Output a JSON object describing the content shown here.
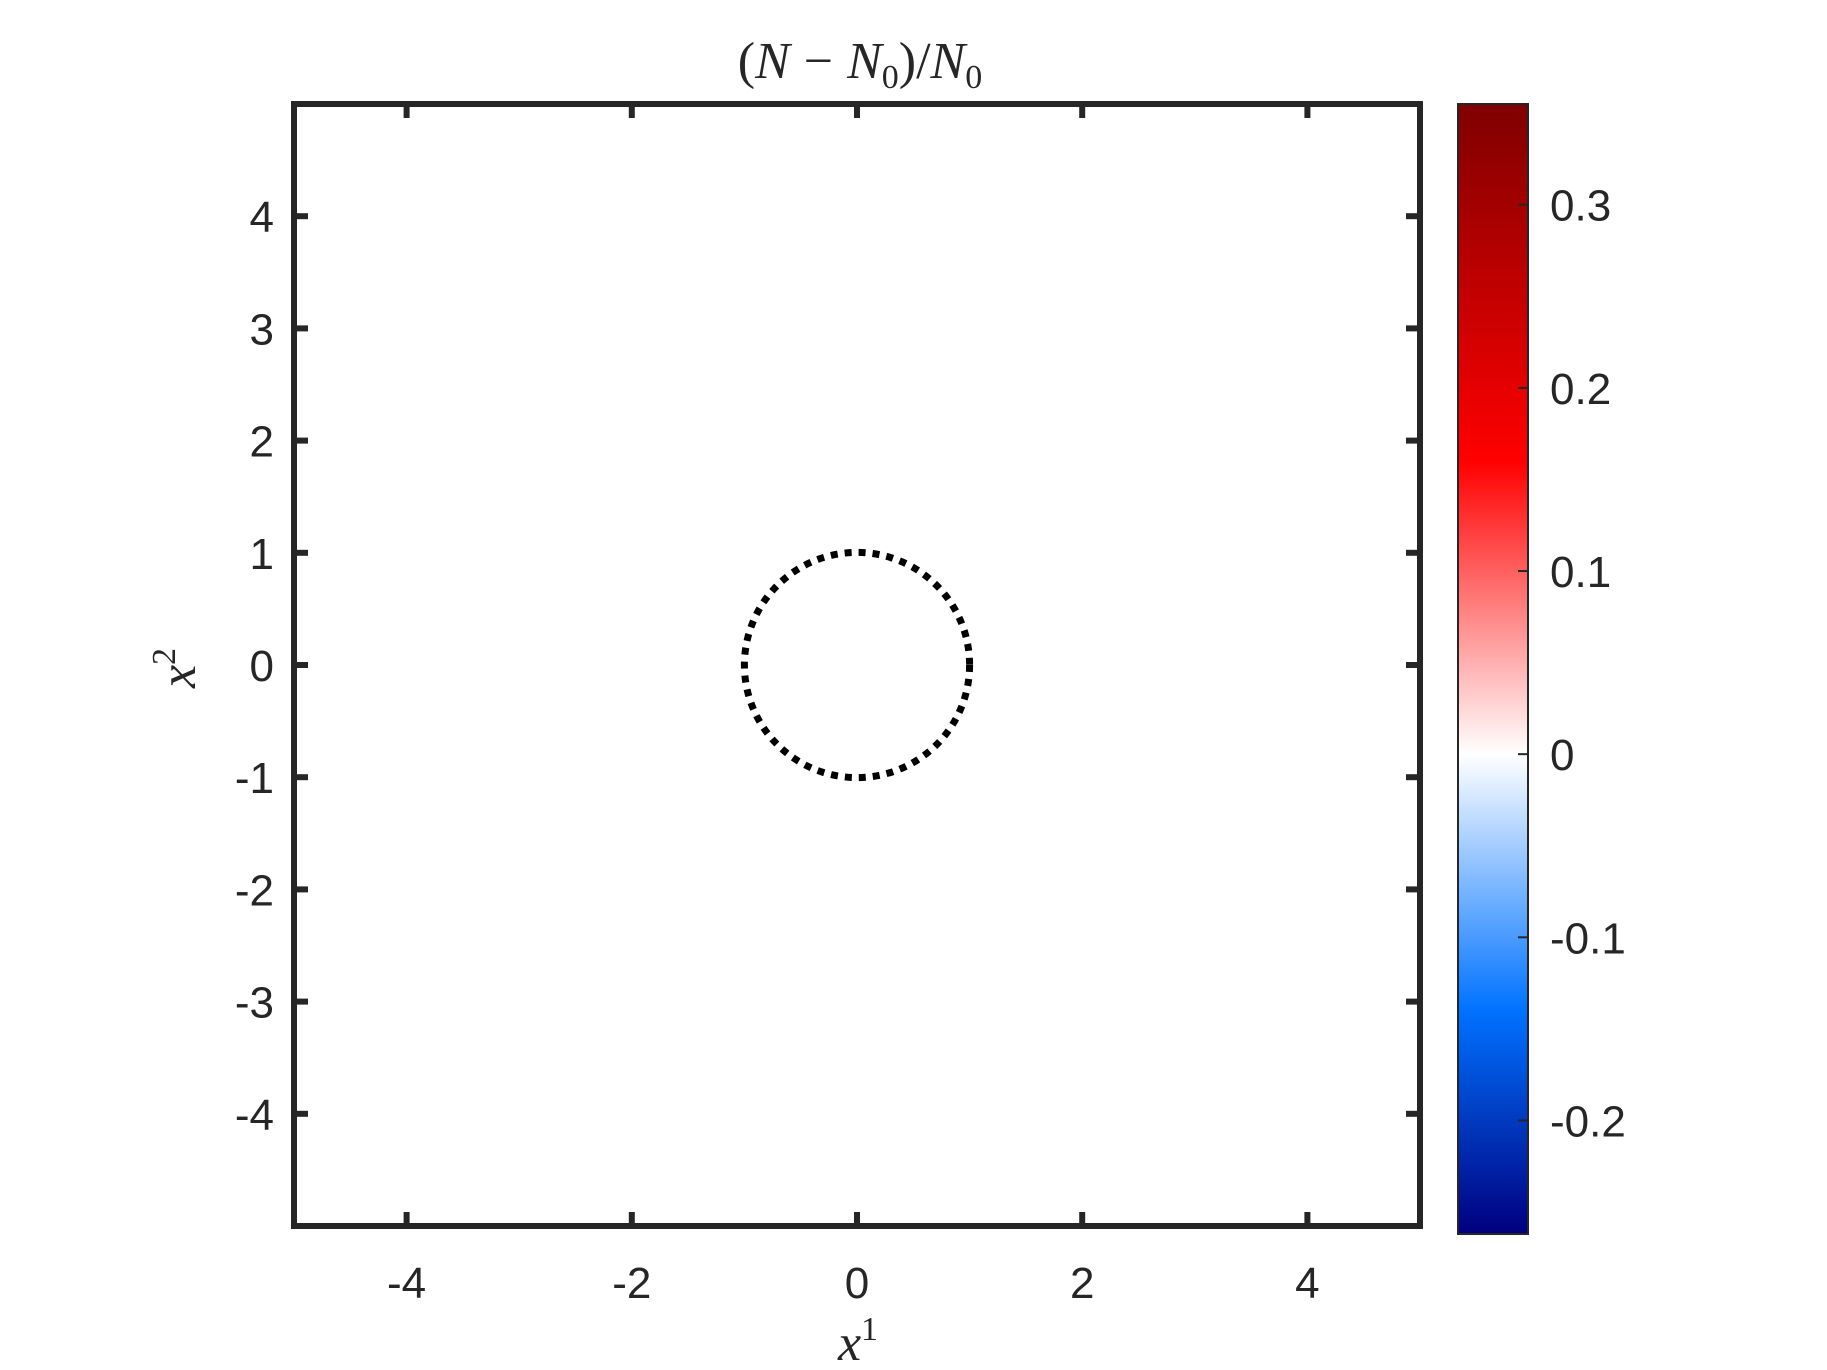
{
  "chart_data": {
    "type": "heatmap",
    "title": "(N − N0)/N0",
    "title_parts": {
      "open": "(",
      "N": "N",
      "minus": "−",
      "N0": "N",
      "sub0": "0",
      "close": ")/",
      "Nd": "N",
      "subd": "0"
    },
    "xlabel": {
      "base": "x",
      "sup": "1"
    },
    "ylabel": {
      "base": "x",
      "sup": "2"
    },
    "xlim": [
      -5,
      5
    ],
    "ylim": [
      -5,
      5
    ],
    "xticks": [
      -4,
      -2,
      0,
      2,
      4
    ],
    "xtick_labels": [
      "-4",
      "-2",
      "0",
      "2",
      "4"
    ],
    "yticks": [
      4,
      3,
      2,
      1,
      0,
      -1,
      -2,
      -3,
      -4
    ],
    "ytick_labels": [
      "4",
      "3",
      "2",
      "1",
      "0",
      "-1",
      "-2",
      "-3",
      "-4"
    ],
    "field_value": 0,
    "circle": {
      "center": [
        0,
        0
      ],
      "radius": 1,
      "style": "dotted",
      "color": "#000000"
    },
    "grid": false,
    "colorbar": {
      "placement": "right",
      "range": [
        -0.262,
        0.355
      ],
      "ticks": [
        0.3,
        0.2,
        0.1,
        0,
        -0.1,
        -0.2
      ],
      "tick_labels": [
        "0.3",
        "0.2",
        "0.1",
        "0",
        "-0.1",
        "-0.2"
      ],
      "colors": [
        {
          "v": -0.262,
          "c": "#00007f"
        },
        {
          "v": -0.14,
          "c": "#0072ff"
        },
        {
          "v": 0,
          "c": "#ffffff"
        },
        {
          "v": 0.16,
          "c": "#ff0000"
        },
        {
          "v": 0.355,
          "c": "#7f0000"
        }
      ]
    }
  },
  "colors": {
    "axes": "#262626",
    "background": "#ffffff"
  }
}
